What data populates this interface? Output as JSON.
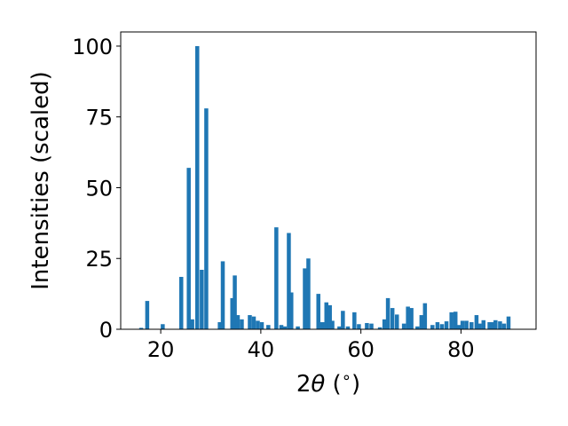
{
  "chart_data": {
    "type": "bar",
    "xlabel_parts": [
      "2",
      "θ",
      " (",
      "∘",
      ")"
    ],
    "ylabel": "Intensities (scaled)",
    "xlim": [
      12,
      95
    ],
    "ylim": [
      0,
      105
    ],
    "grid": false,
    "color": "#1f77b4",
    "x_ticks": [
      20,
      40,
      60,
      80
    ],
    "x_tick_labels": [
      "20",
      "40",
      "60",
      "80"
    ],
    "y_ticks": [
      0,
      25,
      50,
      75,
      100
    ],
    "y_tick_labels": [
      "0",
      "25",
      "50",
      "75",
      "100"
    ],
    "bar_width": 0.8,
    "x": [
      16.1,
      17.3,
      20.4,
      24.1,
      25.6,
      26.3,
      27.3,
      28.2,
      29.1,
      31.8,
      32.4,
      34.3,
      34.8,
      35.4,
      36.2,
      37.8,
      38.6,
      39.4,
      40.2,
      41.5,
      43.1,
      44.1,
      44.8,
      45.6,
      46.1,
      47.4,
      48.8,
      49.5,
      51.5,
      52.3,
      53.1,
      53.8,
      54.3,
      55.7,
      56.4,
      57.4,
      58.7,
      59.6,
      61.2,
      62.1,
      63.8,
      64.7,
      65.4,
      66.3,
      67.2,
      68.6,
      69.4,
      70.1,
      71.3,
      72.1,
      72.8,
      74.3,
      75.3,
      76.2,
      77.1,
      78.1,
      78.9,
      79.6,
      80.3,
      81.1,
      82.1,
      83.1,
      83.7,
      84.5,
      85.7,
      86.2,
      86.9,
      87.8,
      88.6,
      89.5
    ],
    "values": [
      0.5,
      10,
      1.8,
      18.5,
      57,
      3.5,
      100,
      21,
      78,
      2.5,
      24,
      11,
      19,
      5,
      3.5,
      5,
      4.5,
      3,
      2.5,
      1.5,
      36,
      1.5,
      1,
      34,
      13,
      1,
      21.5,
      25,
      12.5,
      2.5,
      9.5,
      8.5,
      3,
      1,
      6.5,
      1,
      6,
      1.8,
      2.2,
      2,
      0.7,
      3.5,
      11,
      7.5,
      5.2,
      2,
      8,
      7.5,
      1,
      5,
      9.2,
      1.5,
      2.5,
      1.8,
      2.8,
      6,
      6.2,
      1.5,
      3,
      3,
      2.5,
      5,
      2,
      3.2,
      2.5,
      2.5,
      3.2,
      2.8,
      2,
      4.5
    ]
  }
}
